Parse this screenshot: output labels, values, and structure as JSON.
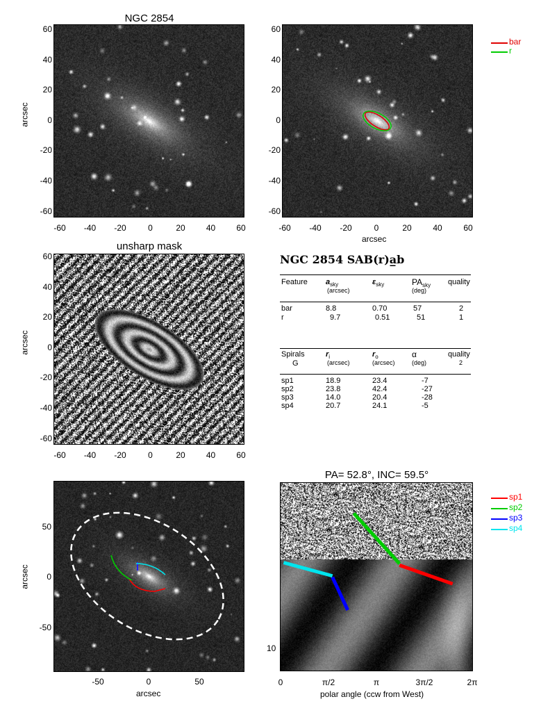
{
  "panel1": {
    "title": "NGC 2854",
    "ylabel": "arcsec",
    "yticks": [
      "60",
      "40",
      "20",
      "0",
      "-20",
      "-40",
      "-60"
    ],
    "xticks": [
      "-60",
      "-40",
      "-20",
      "0",
      "20",
      "40",
      "60"
    ]
  },
  "panel2": {
    "xlabel": "arcsec",
    "yticks": [
      "60",
      "40",
      "20",
      "0",
      "-20",
      "-40",
      "-60"
    ],
    "xticks": [
      "-60",
      "-40",
      "-20",
      "0",
      "20",
      "40",
      "60"
    ],
    "legend": [
      {
        "label": "bar",
        "color": "#e00000"
      },
      {
        "label": "r",
        "color": "#00cc00"
      }
    ]
  },
  "panel3": {
    "title": "unsharp mask",
    "ylabel": "arcsec",
    "yticks": [
      "60",
      "40",
      "20",
      "0",
      "-20",
      "-40",
      "-60"
    ],
    "xticks": [
      "-60",
      "-40",
      "-20",
      "0",
      "20",
      "40",
      "60"
    ]
  },
  "table": {
    "title": "NGC 2854  SAB(r)a̲b",
    "header1": {
      "feature": "Feature",
      "a": "a",
      "a_sub": "sky",
      "a_unit": "(arcsec)",
      "e": "ε",
      "e_sub": "sky",
      "pa": "PA",
      "pa_sub": "sky",
      "pa_unit": "(deg)",
      "quality": "quality"
    },
    "rows1": [
      {
        "feature": "bar",
        "a": "8.8",
        "e": "0.70",
        "pa": "57",
        "q": "2"
      },
      {
        "feature": "r",
        "a": "9.7",
        "e": "0.51",
        "pa": "51",
        "q": "1"
      }
    ],
    "header2": {
      "spirals": "Spirals",
      "g": "G",
      "ri": "r",
      "ri_sub": "i",
      "ri_unit": "(arcsec)",
      "ro": "r",
      "ro_sub": "o",
      "ro_unit": "(arcsec)",
      "alpha": "α",
      "alpha_unit": "(deg)",
      "quality": "quality",
      "q_val": "2"
    },
    "rows2": [
      {
        "name": "sp1",
        "ri": "18.9",
        "ro": "23.4",
        "alpha": "-7"
      },
      {
        "name": "sp2",
        "ri": "23.8",
        "ro": "42.4",
        "alpha": "-27"
      },
      {
        "name": "sp3",
        "ri": "14.0",
        "ro": "20.4",
        "alpha": "-28"
      },
      {
        "name": "sp4",
        "ri": "20.7",
        "ro": "24.1",
        "alpha": "-5"
      }
    ]
  },
  "panel5": {
    "ylabel": "arcsec",
    "xlabel": "arcsec",
    "yticks": [
      "50",
      "0",
      "-50"
    ],
    "xticks": [
      "-50",
      "0",
      "50"
    ]
  },
  "panel6": {
    "title": "PA=  52.8°, INC=  59.5°",
    "xlabel": "polar angle (ccw from West)",
    "xticks": [
      "0",
      "π/2",
      "π",
      "3π/2",
      "2π"
    ],
    "ytick": "10",
    "legend": [
      {
        "label": "sp1",
        "color": "#ff0000"
      },
      {
        "label": "sp2",
        "color": "#00cc00"
      },
      {
        "label": "sp3",
        "color": "#0000ff"
      },
      {
        "label": "sp4",
        "color": "#00e5ee"
      }
    ]
  },
  "chart_data": [
    {
      "type": "line",
      "xlabel": "polar angle (ccw from West)",
      "x_ticks": [
        "0",
        "π/2",
        "π",
        "3π/2",
        "2π"
      ],
      "series": [
        {
          "name": "sp1",
          "x": [
            3.9,
            5.64
          ],
          "y": [
            23.4,
            18.9
          ]
        },
        {
          "name": "sp2",
          "x": [
            2.4,
            3.9
          ],
          "y": [
            42.4,
            23.8
          ]
        },
        {
          "name": "sp3",
          "x": [
            1.7,
            2.2
          ],
          "y": [
            20.4,
            14.0
          ]
        },
        {
          "name": "sp4",
          "x": [
            0.1,
            1.7
          ],
          "y": [
            24.1,
            20.7
          ]
        }
      ]
    }
  ]
}
